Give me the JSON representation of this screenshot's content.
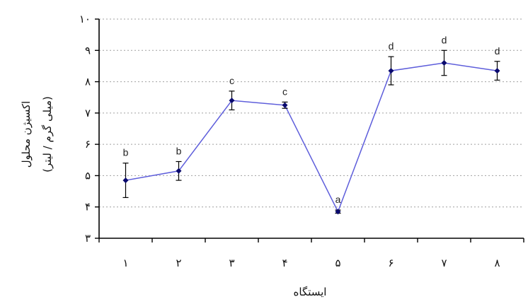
{
  "chart_data": {
    "type": "line",
    "title": "",
    "xlabel": "ایستگاه",
    "ylabel": "اکسیژن محلول",
    "ylabel_unit": "(میلی گرم / لیتر)",
    "x": [
      "۱",
      "۲",
      "۳",
      "۴",
      "۵",
      "۶",
      "۷",
      "۸"
    ],
    "y_ticks": [
      "۳",
      "۴",
      "۵",
      "۶",
      "۷",
      "۸",
      "۹",
      "۱۰"
    ],
    "ylim": [
      3,
      10
    ],
    "grid": "horizontal-dashed",
    "series": [
      {
        "values": [
          4.85,
          5.15,
          7.4,
          7.25,
          3.85,
          8.35,
          8.6,
          8.35
        ],
        "error": [
          0.55,
          0.3,
          0.3,
          0.1,
          0.05,
          0.45,
          0.4,
          0.3
        ],
        "labels": [
          "b",
          "b",
          "c",
          "c",
          "a",
          "d",
          "d",
          "d"
        ]
      }
    ],
    "colors": {
      "line": "#5e5edb",
      "marker": "#0a0a6e",
      "errorbar": "#000000",
      "grid": "#a0a0a0"
    }
  }
}
